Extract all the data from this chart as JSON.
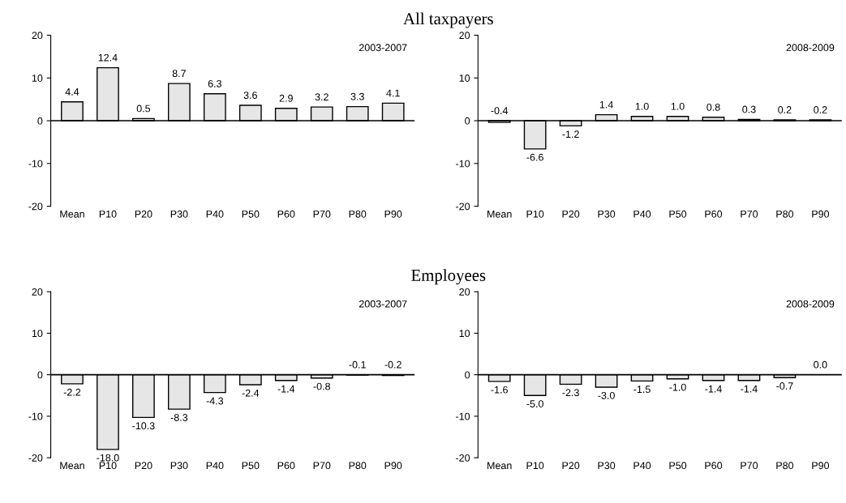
{
  "chart_data": [
    {
      "type": "bar",
      "title": "All taxpayers",
      "categories": [
        "Mean",
        "P10",
        "P20",
        "P30",
        "P40",
        "P50",
        "P60",
        "P70",
        "P80",
        "P90"
      ],
      "values": [
        4.4,
        12.4,
        0.5,
        8.7,
        6.3,
        3.6,
        2.9,
        3.2,
        3.3,
        4.1
      ],
      "value_labels": [
        "4.4",
        "12.4",
        "0.5",
        "8.7",
        "6.3",
        "3.6",
        "2.9",
        "3.2",
        "3.3",
        "4.1"
      ],
      "color": "#e6e6e6",
      "ylim": [
        -20,
        20
      ],
      "yticks": [
        -20,
        -10,
        0,
        10,
        20
      ],
      "annotations": [
        "2003-2007"
      ]
    },
    {
      "type": "bar",
      "categories": [
        "Mean",
        "P10",
        "P20",
        "P30",
        "P40",
        "P50",
        "P60",
        "P70",
        "P80",
        "P90"
      ],
      "values": [
        -0.4,
        -6.6,
        -1.2,
        1.4,
        1.0,
        1.0,
        0.8,
        0.3,
        0.2,
        0.2
      ],
      "value_labels": [
        "-0.4",
        "-6.6",
        "-1.2",
        "1.4",
        "1.0",
        "1.0",
        "0.8",
        "0.3",
        "0.2",
        "0.2"
      ],
      "color": "#e6e6e6",
      "ylim": [
        -20,
        20
      ],
      "yticks": [
        -20,
        -10,
        0,
        10,
        20
      ],
      "annotations": [
        "2008-2009"
      ]
    },
    {
      "type": "bar",
      "title": "Employees",
      "categories": [
        "Mean",
        "P10",
        "P20",
        "P30",
        "P40",
        "P50",
        "P60",
        "P70",
        "P80",
        "P90"
      ],
      "values": [
        -2.2,
        -18.0,
        -10.3,
        -8.3,
        -4.3,
        -2.4,
        -1.4,
        -0.8,
        -0.1,
        -0.2
      ],
      "value_labels": [
        "-2.2",
        "-18.0",
        "-10.3",
        "-8.3",
        "-4.3",
        "-2.4",
        "-1.4",
        "-0.8",
        "-0.1",
        "-0.2"
      ],
      "color": "#e6e6e6",
      "ylim": [
        -20,
        20
      ],
      "yticks": [
        -20,
        -10,
        0,
        10,
        20
      ],
      "annotations": [
        "2003-2007"
      ]
    },
    {
      "type": "bar",
      "categories": [
        "Mean",
        "P10",
        "P20",
        "P30",
        "P40",
        "P50",
        "P60",
        "P70",
        "P80",
        "P90"
      ],
      "values": [
        -1.6,
        -5.0,
        -2.3,
        -3.0,
        -1.5,
        -1.0,
        -1.4,
        -1.4,
        -0.7,
        0.0
      ],
      "value_labels": [
        "-1.6",
        "-5.0",
        "-2.3",
        "-3.0",
        "-1.5",
        "-1.0",
        "-1.4",
        "-1.4",
        "-0.7",
        "0.0"
      ],
      "color": "#e6e6e6",
      "ylim": [
        -20,
        20
      ],
      "yticks": [
        -20,
        -10,
        0,
        10,
        20
      ],
      "annotations": [
        "2008-2009"
      ]
    }
  ]
}
